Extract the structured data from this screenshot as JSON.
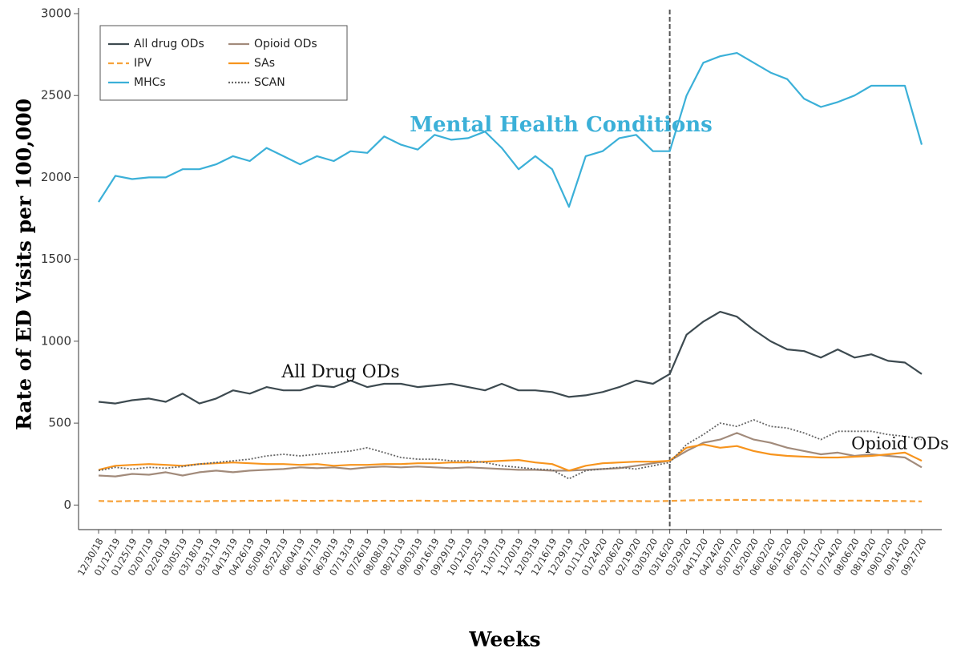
{
  "chart_data": {
    "type": "line",
    "y_label": "Rate of ED Visits per 100,000",
    "x_label": "Weeks",
    "categories": [
      "12/30/18",
      "01/12/19",
      "01/25/19",
      "02/07/19",
      "02/20/19",
      "03/05/19",
      "03/18/19",
      "03/31/19",
      "04/13/19",
      "04/26/19",
      "05/09/19",
      "05/22/19",
      "06/04/19",
      "06/17/19",
      "06/30/19",
      "07/13/19",
      "07/26/19",
      "08/08/19",
      "08/21/19",
      "09/03/19",
      "09/16/19",
      "09/29/19",
      "10/12/19",
      "10/25/19",
      "11/07/19",
      "11/20/19",
      "12/03/19",
      "12/16/19",
      "12/29/19",
      "01/11/20",
      "01/24/20",
      "02/06/20",
      "02/19/20",
      "03/03/20",
      "03/16/20",
      "03/29/20",
      "04/11/20",
      "04/24/20",
      "05/07/20",
      "05/20/20",
      "06/02/20",
      "06/15/20",
      "06/28/20",
      "07/11/20",
      "07/24/20",
      "08/06/20",
      "08/19/20",
      "09/01/20",
      "09/14/20",
      "09/27/20"
    ],
    "series": [
      {
        "name": "All drug ODs",
        "color": "#3d4a50",
        "style": "solid",
        "values": [
          630,
          620,
          640,
          650,
          630,
          680,
          620,
          650,
          700,
          680,
          720,
          700,
          700,
          730,
          720,
          760,
          720,
          740,
          740,
          720,
          730,
          740,
          720,
          700,
          740,
          700,
          700,
          690,
          660,
          670,
          690,
          720,
          760,
          740,
          800,
          1040,
          1120,
          1180,
          1150,
          1070,
          1000,
          950,
          940,
          900,
          950,
          900,
          920,
          880,
          870,
          800
        ]
      },
      {
        "name": "Opioid ODs",
        "color": "#a28b7b",
        "style": "solid",
        "values": [
          180,
          175,
          190,
          185,
          200,
          180,
          200,
          210,
          200,
          210,
          215,
          220,
          230,
          225,
          230,
          220,
          230,
          235,
          230,
          235,
          230,
          225,
          230,
          225,
          220,
          215,
          215,
          210,
          210,
          215,
          220,
          225,
          240,
          255,
          270,
          330,
          380,
          400,
          440,
          400,
          380,
          350,
          330,
          310,
          320,
          300,
          310,
          300,
          290,
          230
        ]
      },
      {
        "name": "IPV",
        "color": "#f7a23a",
        "style": "dashed",
        "values": [
          25,
          22,
          25,
          24,
          23,
          24,
          22,
          25,
          24,
          26,
          25,
          28,
          26,
          25,
          27,
          24,
          25,
          26,
          25,
          27,
          25,
          24,
          26,
          25,
          24,
          23,
          24,
          23,
          22,
          24,
          23,
          25,
          24,
          23,
          25,
          28,
          30,
          30,
          32,
          30,
          30,
          29,
          28,
          27,
          26,
          27,
          26,
          25,
          24,
          22
        ]
      },
      {
        "name": "SAs",
        "color": "#f7941d",
        "style": "solid",
        "values": [
          215,
          240,
          245,
          250,
          245,
          240,
          250,
          255,
          260,
          255,
          250,
          250,
          245,
          250,
          240,
          245,
          245,
          250,
          250,
          255,
          255,
          260,
          260,
          265,
          270,
          275,
          260,
          250,
          210,
          240,
          255,
          260,
          265,
          265,
          270,
          350,
          370,
          350,
          360,
          330,
          310,
          300,
          295,
          290,
          290,
          295,
          300,
          310,
          320,
          270
        ]
      },
      {
        "name": "MHCs",
        "color": "#3bb0d8",
        "style": "solid",
        "values": [
          1850,
          2010,
          1990,
          2000,
          2000,
          2050,
          2050,
          2080,
          2130,
          2100,
          2180,
          2130,
          2080,
          2130,
          2100,
          2160,
          2150,
          2250,
          2200,
          2170,
          2260,
          2230,
          2240,
          2280,
          2180,
          2050,
          2130,
          2050,
          1820,
          2130,
          2160,
          2240,
          2260,
          2160,
          2160,
          2500,
          2700,
          2740,
          2760,
          2700,
          2640,
          2600,
          2480,
          2430,
          2460,
          2500,
          2560,
          2560,
          2560,
          2200
        ]
      },
      {
        "name": "SCAN",
        "color": "#666666",
        "style": "dotted",
        "values": [
          210,
          230,
          220,
          230,
          225,
          235,
          250,
          260,
          270,
          280,
          300,
          310,
          300,
          310,
          320,
          330,
          350,
          320,
          290,
          280,
          280,
          270,
          270,
          260,
          240,
          230,
          220,
          215,
          160,
          210,
          220,
          230,
          220,
          240,
          260,
          370,
          430,
          500,
          480,
          520,
          480,
          470,
          440,
          400,
          450,
          450,
          450,
          430,
          420,
          400
        ]
      }
    ],
    "ylim": [
      -150,
      3000
    ],
    "yticks": [
      0,
      500,
      1000,
      1500,
      2000,
      2500,
      3000
    ],
    "grid": false,
    "legend": "upper left",
    "vline": {
      "x": "03/16/20",
      "color": "#555555"
    },
    "annotations": [
      {
        "text": "Mental Health Conditions",
        "color": "#3bb0d8"
      },
      {
        "text": "All Drug ODs",
        "color": "#111111"
      },
      {
        "text": "Opioid ODs",
        "color": "#111111"
      }
    ]
  }
}
